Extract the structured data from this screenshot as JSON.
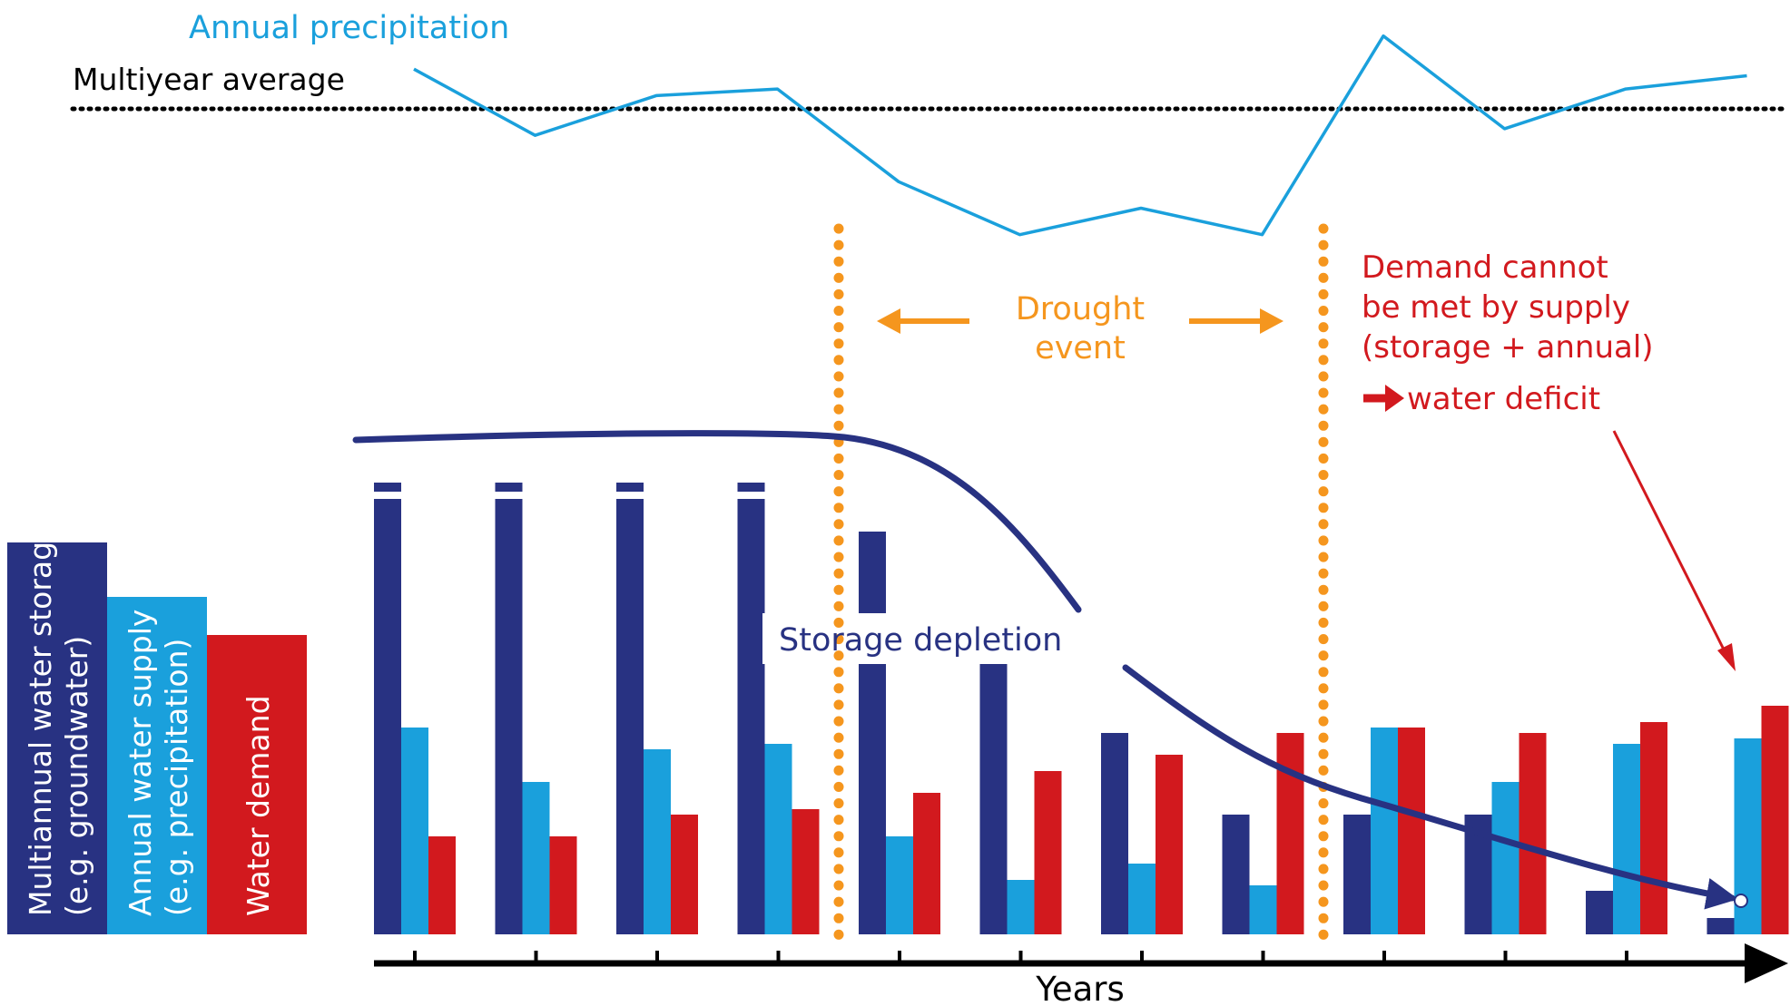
{
  "colors": {
    "storage": "#283282",
    "supply": "#1aa0dc",
    "demand": "#d2191e",
    "precip_line": "#1aa0dc",
    "drought": "#f5961e",
    "deficit": "#d2191e",
    "axis": "#000000"
  },
  "labels": {
    "annual_precipitation": "Annual precipitation",
    "multiyear_average": "Multiyear average",
    "drought_line1": "Drought",
    "drought_line2": "event",
    "deficit_line1": "Demand cannot",
    "deficit_line2": "be met by supply",
    "deficit_line3": "(storage + annual)",
    "deficit_line4": "water deficit",
    "storage_depletion": "Storage depletion",
    "x_axis": "Years"
  },
  "legend": {
    "storage_line1": "Multiannual water storage",
    "storage_line2": "(e.g. groundwater)",
    "supply_line1": "Annual water supply",
    "supply_line2": "(e.g. precipitation)",
    "demand_line1": "Water demand",
    "level_storage": 0.72,
    "level_supply": 0.62,
    "level_demand": 0.55
  },
  "chart_data": {
    "type": "bar",
    "note_scale": "relative amounts, 0-100 units (axis unlabeled)",
    "years": 12,
    "series": [
      {
        "key": "storage",
        "values": [
          80,
          80,
          80,
          80,
          74,
          57,
          37,
          22,
          22,
          22,
          8,
          3
        ]
      },
      {
        "key": "supply",
        "values": [
          38,
          28,
          34,
          35,
          18,
          10,
          13,
          9,
          38,
          28,
          35,
          36
        ]
      },
      {
        "key": "demand",
        "values": [
          18,
          18,
          22,
          23,
          26,
          30,
          33,
          37,
          38,
          37,
          39,
          42
        ]
      }
    ],
    "precipitation": [
      110,
      100,
      106,
      107,
      93,
      85,
      89,
      85,
      115,
      101,
      107,
      109
    ],
    "precipitation_average": 104,
    "drought_start_after_year": 4,
    "drought_end_after_year": 8,
    "icons": [
      "drought-left-arrow",
      "drought-right-arrow",
      "deficit-arrow-icon",
      "deficit-pointer-arrow",
      "years-axis-arrow"
    ]
  }
}
